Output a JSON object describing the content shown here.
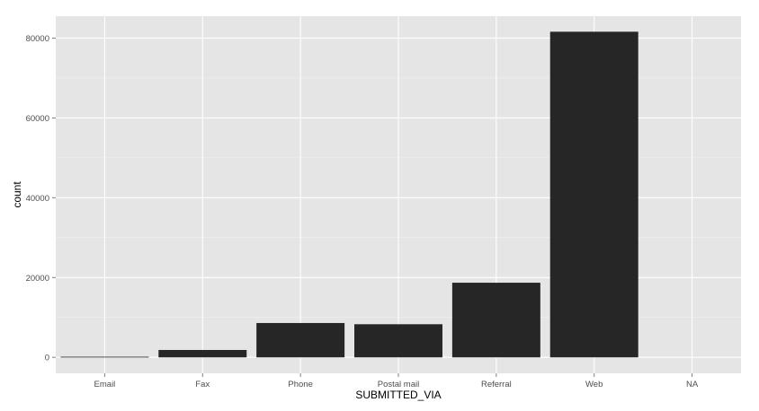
{
  "chart_data": {
    "type": "bar",
    "title": "",
    "xlabel": "SUBMITTED_VIA",
    "ylabel": "count",
    "categories": [
      "Email",
      "Fax",
      "Phone",
      "Postal mail",
      "Referral",
      "Web",
      "NA"
    ],
    "values": [
      150,
      1850,
      8600,
      8300,
      18700,
      81600,
      0
    ],
    "ylim": [
      -4000,
      85500
    ],
    "yticks": [
      0,
      20000,
      40000,
      60000,
      80000
    ],
    "grid": true,
    "legend": "none",
    "colors": {
      "panel_background": "#E5E5E5",
      "grid_major": "#FFFFFF",
      "grid_minor": "#F2F2F2",
      "bar_fill": "#262626",
      "tick_text": "#4D4D4D",
      "tick_mark": "#7F7F7F"
    }
  }
}
